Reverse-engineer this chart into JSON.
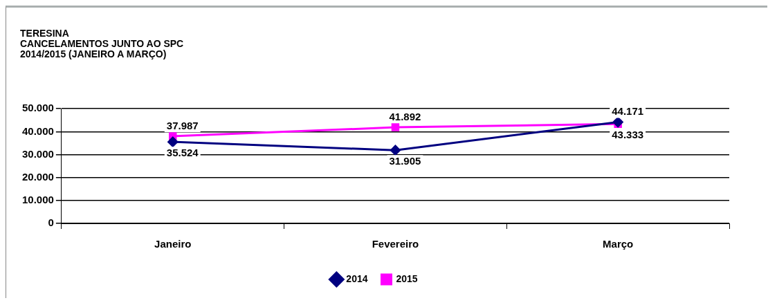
{
  "chart_data": {
    "type": "line",
    "title": [
      "TERESINA",
      "CANCELAMENTOS JUNTO AO SPC",
      "2014/2015 (JANEIRO A MARÇO)"
    ],
    "categories": [
      "Janeiro",
      "Fevereiro",
      "Março"
    ],
    "series": [
      {
        "name": "2014",
        "color": "#000080",
        "values": [
          35524,
          31905,
          44171
        ],
        "value_labels": [
          "35.524",
          "31.905",
          "44.171"
        ],
        "marker": "diamond"
      },
      {
        "name": "2015",
        "color": "#ff00ff",
        "values": [
          37987,
          41892,
          43333
        ],
        "value_labels": [
          "37.987",
          "41.892",
          "43.333"
        ],
        "marker": "square"
      }
    ],
    "ylim": [
      0,
      50000
    ],
    "yticks": [
      {
        "value": 0,
        "label": "0"
      },
      {
        "value": 10000,
        "label": "10.000"
      },
      {
        "value": 20000,
        "label": "20.000"
      },
      {
        "value": 30000,
        "label": "30.000"
      },
      {
        "value": 40000,
        "label": "40.000"
      },
      {
        "value": 50000,
        "label": "50.000"
      }
    ],
    "grid": "y",
    "legend": "bottom",
    "line_style": "solid"
  }
}
